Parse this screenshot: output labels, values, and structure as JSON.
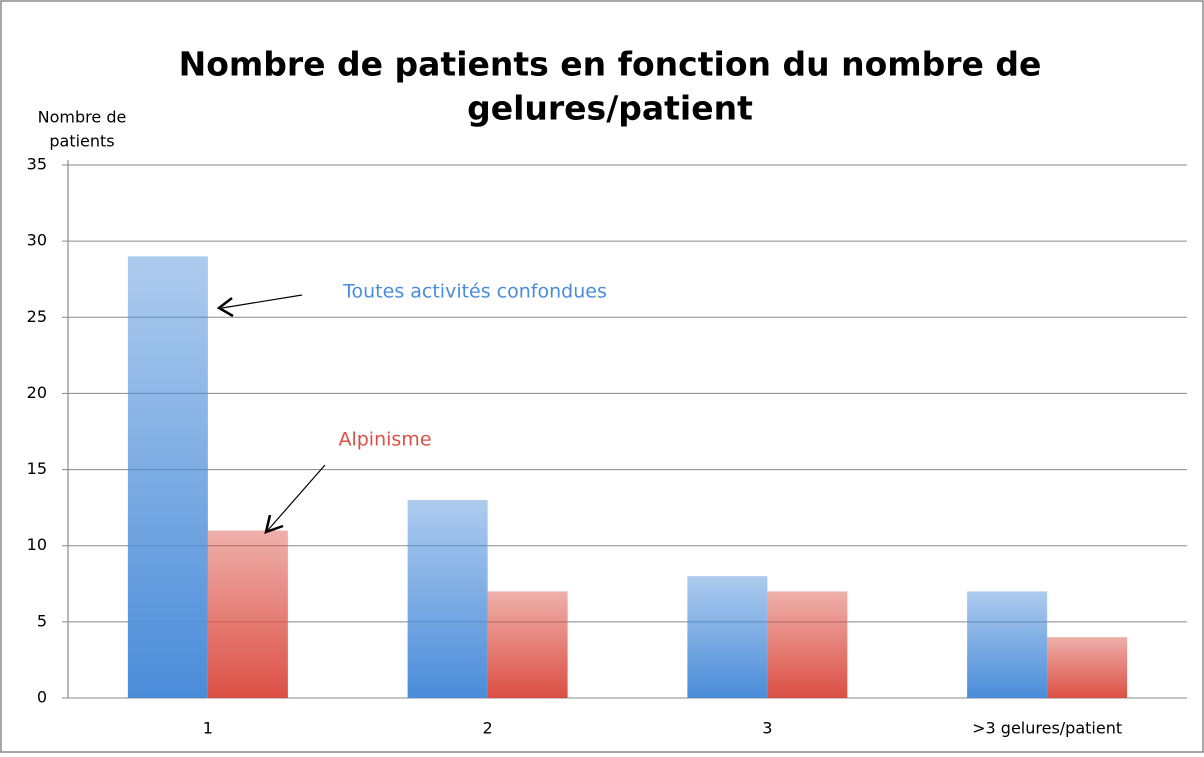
{
  "chart_data": {
    "type": "bar",
    "title": [
      "Nombre de patients en fonction du nombre de",
      "gelures/patient"
    ],
    "ylabel": [
      "Nombre de",
      "patients"
    ],
    "categories": [
      "1",
      "2",
      "3",
      ">3 gelures/patient"
    ],
    "series": [
      {
        "name": "Toutes activités confondues",
        "color": "#4a8cd9",
        "values": [
          29,
          13,
          8,
          7
        ]
      },
      {
        "name": "Alpinisme",
        "color": "#db4f44",
        "values": [
          11,
          7,
          7,
          4
        ]
      }
    ],
    "ylim": [
      0,
      35
    ],
    "yticks": [
      0,
      5,
      10,
      15,
      20,
      25,
      30,
      35
    ],
    "grid": true
  }
}
